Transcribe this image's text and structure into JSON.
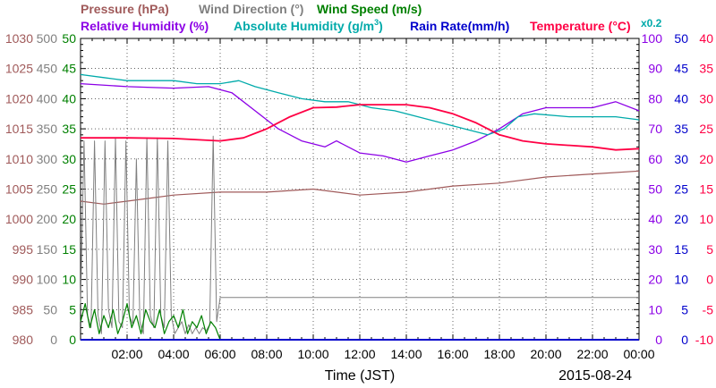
{
  "chart_data": {
    "type": "line",
    "date_label": "2015-08-24",
    "xlabel": "Time (JST)",
    "x_ticks": [
      "02:00",
      "04:00",
      "06:00",
      "08:00",
      "10:00",
      "12:00",
      "14:00",
      "16:00",
      "18:00",
      "20:00",
      "22:00",
      "00:00"
    ],
    "x_range_hours": [
      0,
      24
    ],
    "legend": {
      "pressure": "Pressure (hPa)",
      "wind_direction": "Wind Direction (°)",
      "wind_speed": "Wind Speed (m/s)",
      "relative_humidity": "Relative Humidity (%)",
      "absolute_humidity_prefix": "Absolute Humidity (g/m",
      "absolute_humidity_sup": "3",
      "absolute_humidity_suffix": ")",
      "rain_rate": "Rain Rate(mm/h)",
      "temperature": "Temperature (°C)",
      "rain_multiplier": "x0.2"
    },
    "colors": {
      "pressure": "#a05a5a",
      "wind_direction": "#808080",
      "wind_speed": "#008000",
      "relative_humidity": "#8c00e6",
      "absolute_humidity": "#00aaaa",
      "rain_rate": "#0000cc",
      "temperature": "#ff0044"
    },
    "axes": {
      "pressure": {
        "range": [
          980,
          1030
        ],
        "ticks": [
          "980",
          "985",
          "990",
          "995",
          "1000",
          "1005",
          "1010",
          "1015",
          "1020",
          "1025",
          "1030"
        ]
      },
      "wind_direction": {
        "range": [
          0,
          500
        ],
        "ticks": [
          "0",
          "50",
          "100",
          "150",
          "200",
          "250",
          "300",
          "350",
          "400",
          "450",
          "500"
        ]
      },
      "wind_speed": {
        "range": [
          0,
          50
        ],
        "ticks": [
          "0",
          "5",
          "10",
          "15",
          "20",
          "25",
          "30",
          "35",
          "40",
          "45",
          "50"
        ]
      },
      "relative_humidity": {
        "range": [
          0,
          100
        ],
        "ticks": [
          "0",
          "10",
          "20",
          "30",
          "40",
          "50",
          "60",
          "70",
          "80",
          "90",
          "100"
        ]
      },
      "rain_rate": {
        "range": [
          0,
          50
        ],
        "ticks": [
          "0",
          "5",
          "10",
          "15",
          "20",
          "25",
          "30",
          "35",
          "40",
          "45",
          "50"
        ]
      },
      "temperature": {
        "range": [
          -10,
          40
        ],
        "ticks": [
          "-10",
          "-5",
          "0",
          "5",
          "10",
          "15",
          "20",
          "25",
          "30",
          "35",
          "40"
        ]
      }
    },
    "series": [
      {
        "key": "pressure",
        "axis": "pressure",
        "points": [
          [
            0,
            1003
          ],
          [
            1,
            1002.5
          ],
          [
            2,
            1003
          ],
          [
            3,
            1003.5
          ],
          [
            4,
            1004
          ],
          [
            6,
            1004.5
          ],
          [
            8,
            1004.5
          ],
          [
            10,
            1005
          ],
          [
            12,
            1004
          ],
          [
            14,
            1004.5
          ],
          [
            16,
            1005.5
          ],
          [
            18,
            1006
          ],
          [
            20,
            1007
          ],
          [
            22,
            1007.5
          ],
          [
            24,
            1008
          ]
        ]
      },
      {
        "key": "wind_direction",
        "axis": "wind_direction",
        "points": [
          [
            0.0,
            60
          ],
          [
            0.15,
            330
          ],
          [
            0.3,
            40
          ],
          [
            0.45,
            20
          ],
          [
            0.6,
            330
          ],
          [
            0.75,
            40
          ],
          [
            0.9,
            10
          ],
          [
            1.05,
            330
          ],
          [
            1.2,
            50
          ],
          [
            1.35,
            20
          ],
          [
            1.5,
            335
          ],
          [
            1.65,
            30
          ],
          [
            1.8,
            20
          ],
          [
            1.95,
            330
          ],
          [
            2.1,
            40
          ],
          [
            2.25,
            25
          ],
          [
            2.4,
            300
          ],
          [
            2.55,
            30
          ],
          [
            2.7,
            10
          ],
          [
            2.85,
            335
          ],
          [
            3.0,
            40
          ],
          [
            3.15,
            20
          ],
          [
            3.3,
            335
          ],
          [
            3.45,
            40
          ],
          [
            3.6,
            20
          ],
          [
            3.75,
            330
          ],
          [
            3.9,
            40
          ],
          [
            4.05,
            10
          ],
          [
            4.2,
            20
          ],
          [
            4.35,
            30
          ],
          [
            4.5,
            10
          ],
          [
            4.65,
            25
          ],
          [
            4.8,
            10
          ],
          [
            4.95,
            20
          ],
          [
            5.1,
            10
          ],
          [
            5.25,
            20
          ],
          [
            5.4,
            15
          ],
          [
            5.55,
            25
          ],
          [
            5.7,
            338
          ],
          [
            5.85,
            30
          ],
          [
            6.0,
            70
          ],
          [
            9.0,
            70
          ],
          [
            12.0,
            70
          ],
          [
            15.0,
            70
          ],
          [
            18.0,
            70
          ],
          [
            21.0,
            70
          ],
          [
            24.0,
            70
          ]
        ]
      },
      {
        "key": "wind_speed",
        "axis": "wind_speed",
        "points": [
          [
            0.0,
            3
          ],
          [
            0.2,
            6
          ],
          [
            0.4,
            2
          ],
          [
            0.6,
            5
          ],
          [
            0.8,
            1
          ],
          [
            1.0,
            4
          ],
          [
            1.2,
            2
          ],
          [
            1.4,
            5
          ],
          [
            1.6,
            1
          ],
          [
            1.8,
            3
          ],
          [
            2.0,
            6
          ],
          [
            2.2,
            2
          ],
          [
            2.4,
            4
          ],
          [
            2.6,
            1
          ],
          [
            2.8,
            5
          ],
          [
            3.0,
            3
          ],
          [
            3.2,
            2
          ],
          [
            3.4,
            5
          ],
          [
            3.6,
            1
          ],
          [
            3.8,
            3
          ],
          [
            4.0,
            4
          ],
          [
            4.2,
            2
          ],
          [
            4.4,
            5
          ],
          [
            4.6,
            1
          ],
          [
            4.8,
            3
          ],
          [
            5.0,
            2
          ],
          [
            5.2,
            4
          ],
          [
            5.4,
            1
          ],
          [
            5.6,
            3
          ],
          [
            5.8,
            2
          ],
          [
            6.0,
            0
          ]
        ]
      },
      {
        "key": "relative_humidity",
        "axis": "relative_humidity",
        "points": [
          [
            0,
            85
          ],
          [
            2,
            84
          ],
          [
            4,
            83.5
          ],
          [
            5.5,
            84
          ],
          [
            6.5,
            82
          ],
          [
            7.5,
            76
          ],
          [
            8.5,
            70
          ],
          [
            9.5,
            66
          ],
          [
            10.5,
            64
          ],
          [
            11,
            66
          ],
          [
            12,
            62
          ],
          [
            13,
            61
          ],
          [
            14,
            59
          ],
          [
            15,
            61
          ],
          [
            16,
            63
          ],
          [
            17,
            66
          ],
          [
            18,
            70
          ],
          [
            19,
            75
          ],
          [
            20,
            77
          ],
          [
            22,
            77
          ],
          [
            23,
            79
          ],
          [
            24,
            76
          ]
        ]
      },
      {
        "key": "absolute_humidity",
        "axis": "wind_speed",
        "points": [
          [
            0,
            44
          ],
          [
            1,
            43.5
          ],
          [
            2,
            43
          ],
          [
            4,
            43
          ],
          [
            5,
            42.5
          ],
          [
            6,
            42.5
          ],
          [
            6.8,
            43
          ],
          [
            7.5,
            42
          ],
          [
            8.5,
            41
          ],
          [
            9.5,
            40
          ],
          [
            10.5,
            39.5
          ],
          [
            11.5,
            39.5
          ],
          [
            12.5,
            38.5
          ],
          [
            13.5,
            38
          ],
          [
            14.5,
            37
          ],
          [
            15.5,
            36
          ],
          [
            16.5,
            35
          ],
          [
            17.5,
            34
          ],
          [
            18.2,
            35
          ],
          [
            18.8,
            37
          ],
          [
            19.5,
            37.5
          ],
          [
            21,
            37
          ],
          [
            22,
            37
          ],
          [
            23,
            37
          ],
          [
            24,
            36.5
          ]
        ]
      },
      {
        "key": "temperature",
        "axis": "temperature",
        "points": [
          [
            0,
            23.5
          ],
          [
            2,
            23.5
          ],
          [
            4,
            23.4
          ],
          [
            6,
            23
          ],
          [
            7,
            23.5
          ],
          [
            8,
            25
          ],
          [
            9,
            27
          ],
          [
            10,
            28.5
          ],
          [
            11,
            28.6
          ],
          [
            12,
            29
          ],
          [
            13,
            29
          ],
          [
            14,
            29
          ],
          [
            15,
            28.5
          ],
          [
            16,
            27.5
          ],
          [
            17,
            26
          ],
          [
            18,
            24
          ],
          [
            19,
            23
          ],
          [
            20,
            22.5
          ],
          [
            22,
            22
          ],
          [
            23,
            21.5
          ],
          [
            24,
            21.7
          ]
        ]
      },
      {
        "key": "rain_rate",
        "axis": "rain_rate",
        "points": [
          [
            0,
            0
          ],
          [
            24,
            0
          ]
        ]
      }
    ]
  }
}
